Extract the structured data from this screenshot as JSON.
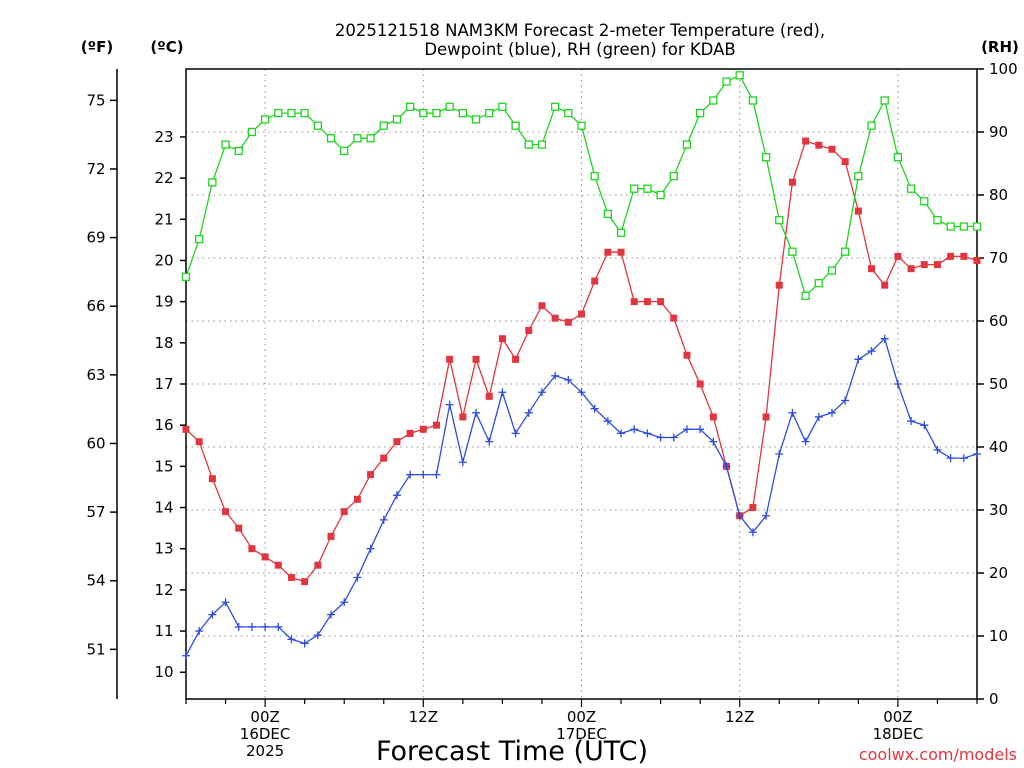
{
  "chart_data": {
    "type": "line",
    "title": "2025121518 NAM3KM Forecast 2-meter Temperature (red),",
    "subtitle": "Dewpoint (blue), RH (green) for KDAB",
    "xlabel": "Forecast Time (UTC)",
    "credit": "coolwx.com/models",
    "left_f_axis": {
      "label": "(ºF)",
      "ticks": [
        51,
        54,
        57,
        60,
        63,
        66,
        69,
        72,
        75
      ]
    },
    "left_c_axis": {
      "label": "(ºC)",
      "ticks": [
        10,
        11,
        12,
        13,
        14,
        15,
        16,
        17,
        18,
        19,
        20,
        21,
        22,
        23
      ],
      "ylim": [
        9.35,
        24.65
      ]
    },
    "right_axis": {
      "label": "(RH)",
      "ticks": [
        0,
        10,
        20,
        30,
        40,
        50,
        60,
        70,
        80,
        90,
        100
      ],
      "ylim": [
        0,
        100
      ]
    },
    "x_axis": {
      "unit": "forecast hour",
      "xlim": [
        0,
        60
      ],
      "ticks": [
        {
          "hour": 6,
          "lines": [
            "00Z",
            "16DEC",
            "2025"
          ]
        },
        {
          "hour": 18,
          "lines": [
            "12Z"
          ]
        },
        {
          "hour": 30,
          "lines": [
            "00Z",
            "17DEC"
          ]
        },
        {
          "hour": 42,
          "lines": [
            "12Z"
          ]
        },
        {
          "hour": 54,
          "lines": [
            "00Z",
            "18DEC"
          ]
        }
      ]
    },
    "x": [
      0,
      1,
      2,
      3,
      4,
      5,
      6,
      7,
      8,
      9,
      10,
      11,
      12,
      13,
      14,
      15,
      16,
      17,
      18,
      19,
      20,
      21,
      22,
      23,
      24,
      25,
      26,
      27,
      28,
      29,
      30,
      31,
      32,
      33,
      34,
      35,
      36,
      37,
      38,
      39,
      40,
      41,
      42,
      43,
      44,
      45,
      46,
      47,
      48,
      49,
      50,
      51,
      52,
      53,
      54,
      55,
      56,
      57,
      58,
      59,
      60
    ],
    "series": [
      {
        "name": "Temperature",
        "unit": "°C",
        "color": "#e0363f",
        "marker": "filled-square",
        "values": [
          15.9,
          15.6,
          14.7,
          13.9,
          13.5,
          13.0,
          12.8,
          12.6,
          12.3,
          12.2,
          12.6,
          13.3,
          13.9,
          14.2,
          14.8,
          15.2,
          15.6,
          15.8,
          15.9,
          16.0,
          17.6,
          16.2,
          17.6,
          16.7,
          18.1,
          17.6,
          18.3,
          18.9,
          18.6,
          18.5,
          18.7,
          19.5,
          20.2,
          20.2,
          19.0,
          19.0,
          19.0,
          18.6,
          17.7,
          17.0,
          16.2,
          15.0,
          13.8,
          14.0,
          16.2,
          19.4,
          21.9,
          22.9,
          22.8,
          22.7,
          22.4,
          21.2,
          19.8,
          19.4,
          20.1,
          19.8,
          19.9,
          19.9,
          20.1,
          20.1,
          20.0
        ]
      },
      {
        "name": "Dewpoint",
        "unit": "°C",
        "color": "#2e4de0",
        "marker": "plus",
        "values": [
          10.4,
          11.0,
          11.4,
          11.7,
          11.1,
          11.1,
          11.1,
          11.1,
          10.8,
          10.7,
          10.9,
          11.4,
          11.7,
          12.3,
          13.0,
          13.7,
          14.3,
          14.8,
          14.8,
          14.8,
          16.5,
          15.1,
          16.3,
          15.6,
          16.8,
          15.8,
          16.3,
          16.8,
          17.2,
          17.1,
          16.8,
          16.4,
          16.1,
          15.8,
          15.9,
          15.8,
          15.7,
          15.7,
          15.9,
          15.9,
          15.6,
          15.0,
          13.8,
          13.4,
          13.8,
          15.3,
          16.3,
          15.6,
          16.2,
          16.3,
          16.6,
          17.6,
          17.8,
          18.1,
          17.0,
          16.1,
          16.0,
          15.4,
          15.2,
          15.2,
          15.3
        ]
      },
      {
        "name": "RH",
        "unit": "%",
        "color": "#1ed41e",
        "marker": "open-square",
        "values": [
          67,
          73,
          82,
          88,
          87,
          90,
          92,
          93,
          93,
          93,
          91,
          89,
          87,
          89,
          89,
          91,
          92,
          94,
          93,
          93,
          94,
          93,
          92,
          93,
          94,
          91,
          88,
          88,
          94,
          93,
          91,
          83,
          77,
          74,
          81,
          81,
          80,
          83,
          88,
          93,
          95,
          98,
          99,
          95,
          86,
          76,
          71,
          64,
          66,
          68,
          71,
          83,
          91,
          95,
          86,
          81,
          79,
          76,
          75,
          75,
          75
        ]
      }
    ]
  }
}
